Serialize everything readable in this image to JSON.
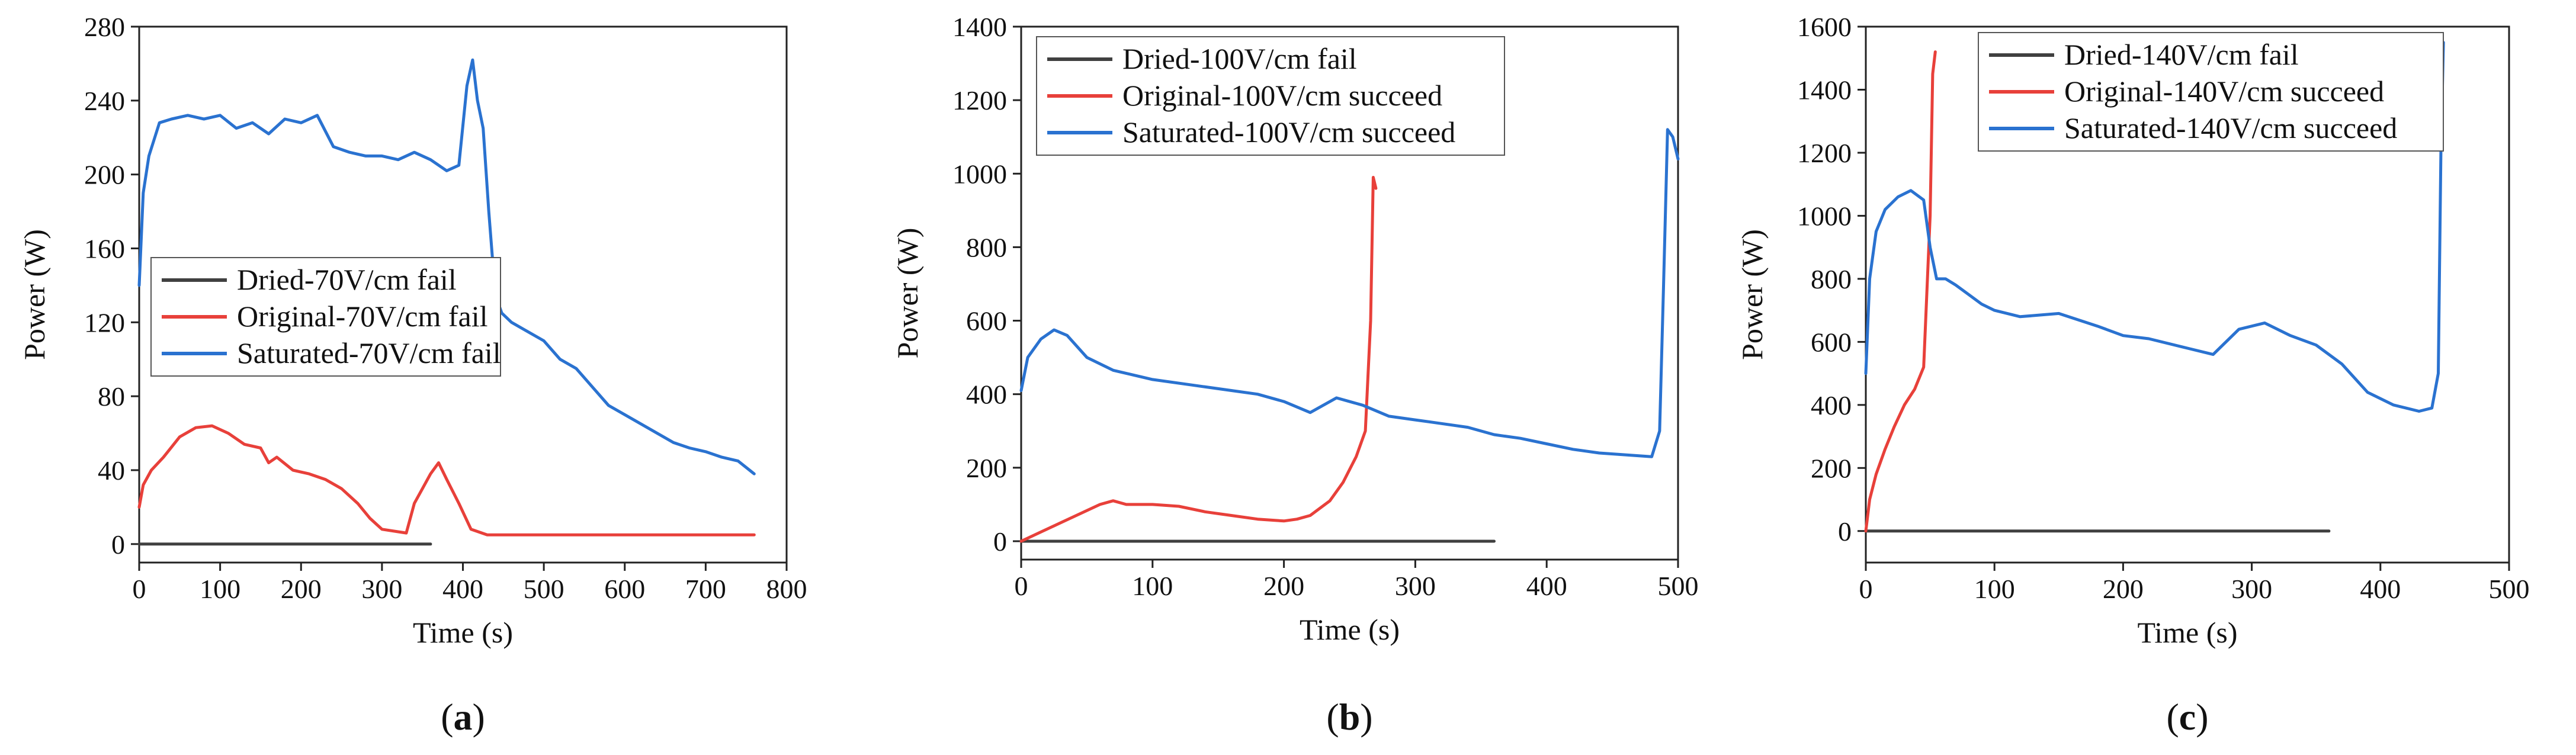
{
  "chart_data": [
    {
      "type": "line",
      "caption": "a",
      "xlabel": "Time (s)",
      "ylabel": "Power (W)",
      "xlim": [
        0,
        800
      ],
      "ylim": [
        -10,
        280
      ],
      "xticks": [
        0,
        100,
        200,
        300,
        400,
        500,
        600,
        700,
        800
      ],
      "yticks": [
        0,
        40,
        80,
        120,
        160,
        200,
        240,
        280
      ],
      "legend_position": "middle-left",
      "series": [
        {
          "name": "Dried-70V/cm fail",
          "color": "#404040",
          "x": [
            0,
            360
          ],
          "y": [
            0,
            0
          ]
        },
        {
          "name": "Original-70V/cm fail",
          "color": "#e8403a",
          "x": [
            0,
            5,
            15,
            30,
            50,
            70,
            90,
            110,
            130,
            150,
            160,
            170,
            190,
            210,
            230,
            250,
            270,
            285,
            300,
            330,
            340,
            350,
            360,
            370,
            380,
            395,
            410,
            430,
            500,
            600,
            700,
            760
          ],
          "y": [
            20,
            32,
            40,
            47,
            58,
            63,
            64,
            60,
            54,
            52,
            44,
            47,
            40,
            38,
            35,
            30,
            22,
            14,
            8,
            6,
            22,
            30,
            38,
            44,
            35,
            22,
            8,
            5,
            5,
            5,
            5,
            5
          ]
        },
        {
          "name": "Saturated-70V/cm fail",
          "color": "#2a72d0",
          "x": [
            0,
            5,
            12,
            25,
            40,
            60,
            80,
            100,
            120,
            140,
            160,
            180,
            200,
            220,
            240,
            260,
            280,
            300,
            320,
            340,
            360,
            380,
            395,
            405,
            412,
            418,
            425,
            432,
            440,
            448,
            460,
            480,
            500,
            520,
            540,
            560,
            580,
            600,
            620,
            640,
            660,
            680,
            700,
            720,
            740,
            760
          ],
          "y": [
            140,
            190,
            210,
            228,
            230,
            232,
            230,
            232,
            225,
            228,
            222,
            230,
            228,
            232,
            215,
            212,
            210,
            210,
            208,
            212,
            208,
            202,
            205,
            248,
            262,
            240,
            225,
            180,
            135,
            125,
            120,
            115,
            110,
            100,
            95,
            85,
            75,
            70,
            65,
            60,
            55,
            52,
            50,
            47,
            45,
            38
          ]
        }
      ]
    },
    {
      "type": "line",
      "caption": "b",
      "xlabel": "Time (s)",
      "ylabel": "Power (W)",
      "xlim": [
        0,
        500
      ],
      "ylim": [
        -50,
        1400
      ],
      "xticks": [
        0,
        100,
        200,
        300,
        400,
        500
      ],
      "yticks": [
        0,
        200,
        400,
        600,
        800,
        1000,
        1200,
        1400
      ],
      "legend_position": "top-left",
      "series": [
        {
          "name": "Dried-100V/cm fail",
          "color": "#404040",
          "x": [
            0,
            360
          ],
          "y": [
            0,
            0
          ]
        },
        {
          "name": "Original-100V/cm succeed",
          "color": "#e8403a",
          "x": [
            0,
            15,
            30,
            45,
            60,
            70,
            80,
            100,
            120,
            140,
            160,
            180,
            200,
            210,
            220,
            235,
            245,
            255,
            262,
            266,
            268,
            270
          ],
          "y": [
            0,
            25,
            50,
            75,
            100,
            110,
            100,
            100,
            95,
            80,
            70,
            60,
            55,
            60,
            70,
            110,
            160,
            230,
            300,
            600,
            990,
            960
          ]
        },
        {
          "name": "Saturated-100V/cm succeed",
          "color": "#2a72d0",
          "x": [
            0,
            5,
            15,
            25,
            35,
            50,
            70,
            100,
            130,
            160,
            180,
            200,
            220,
            240,
            260,
            280,
            300,
            320,
            340,
            360,
            380,
            400,
            420,
            440,
            460,
            480,
            486,
            489,
            492,
            496,
            500
          ],
          "y": [
            410,
            500,
            550,
            575,
            560,
            500,
            465,
            440,
            425,
            410,
            400,
            380,
            350,
            390,
            370,
            340,
            330,
            320,
            310,
            290,
            280,
            265,
            250,
            240,
            235,
            230,
            300,
            700,
            1120,
            1100,
            1040
          ]
        }
      ]
    },
    {
      "type": "line",
      "caption": "c",
      "xlabel": "Time (s)",
      "ylabel": "Power (W)",
      "xlim": [
        0,
        500
      ],
      "ylim": [
        -100,
        1600
      ],
      "xticks": [
        0,
        100,
        200,
        300,
        400,
        500
      ],
      "yticks": [
        0,
        200,
        400,
        600,
        800,
        1000,
        1200,
        1400,
        1600
      ],
      "legend_position": "top-right",
      "series": [
        {
          "name": "Dried-140V/cm fail",
          "color": "#404040",
          "x": [
            0,
            360
          ],
          "y": [
            0,
            0
          ]
        },
        {
          "name": "Original-140V/cm succeed",
          "color": "#e8403a",
          "x": [
            0,
            3,
            8,
            15,
            22,
            30,
            38,
            45,
            50,
            52,
            54
          ],
          "y": [
            0,
            100,
            180,
            260,
            330,
            400,
            450,
            520,
            1000,
            1450,
            1520
          ]
        },
        {
          "name": "Saturated-140V/cm succeed",
          "color": "#2a72d0",
          "x": [
            0,
            3,
            8,
            15,
            25,
            35,
            45,
            50,
            55,
            62,
            70,
            80,
            90,
            100,
            120,
            150,
            180,
            200,
            220,
            250,
            270,
            290,
            310,
            330,
            350,
            370,
            390,
            410,
            430,
            440,
            445,
            447,
            449
          ],
          "y": [
            500,
            800,
            950,
            1020,
            1060,
            1080,
            1050,
            900,
            800,
            800,
            780,
            750,
            720,
            700,
            680,
            690,
            650,
            620,
            610,
            580,
            560,
            640,
            660,
            620,
            590,
            530,
            440,
            400,
            380,
            390,
            500,
            1200,
            1550
          ]
        }
      ]
    }
  ]
}
